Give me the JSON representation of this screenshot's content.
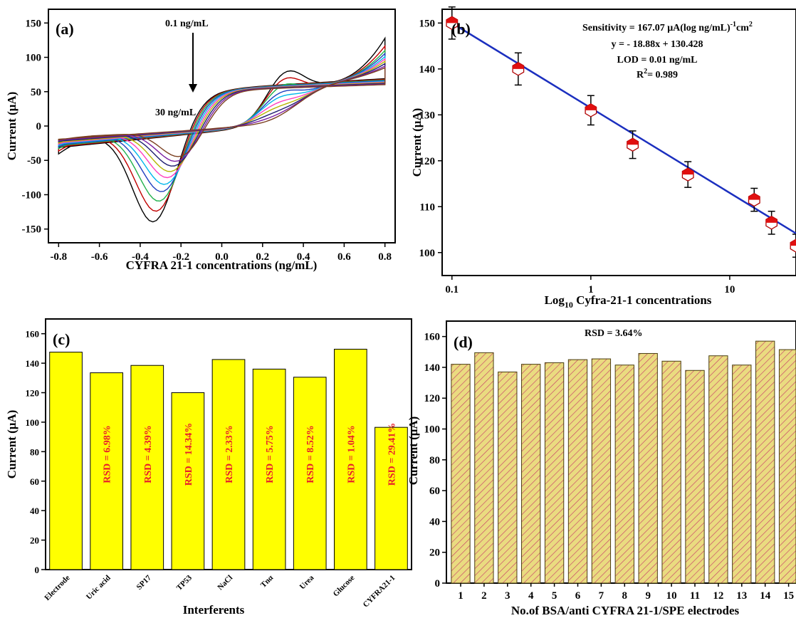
{
  "chart_data": [
    {
      "panel": "(a)",
      "type": "line",
      "xlabel": "CYFRA 21-1 concentrations (ng/mL)",
      "ylabel": "Current (μA)",
      "xlim": [
        -0.85,
        0.85
      ],
      "ylim": [
        -170,
        170
      ],
      "xticks": [
        "-0.8",
        "-0.6",
        "-0.4",
        "-0.2",
        "0.0",
        "0.2",
        "0.4",
        "0.6",
        "0.8"
      ],
      "xtick_values": [
        -0.8,
        -0.6,
        -0.4,
        -0.2,
        0.0,
        0.2,
        0.4,
        0.6,
        0.8
      ],
      "yticks": [
        "-150",
        "-100",
        "-50",
        "0",
        "50",
        "100",
        "150"
      ],
      "ytick_values": [
        -150,
        -100,
        -50,
        0,
        50,
        100,
        150
      ],
      "annotations": {
        "top": "0.1 ng/mL",
        "bottom": "30 ng/mL"
      },
      "series": [
        {
          "color": "#000000",
          "ipa": 158,
          "ipc": -162,
          "a_end": 111,
          "c_start": -103
        },
        {
          "color": "#c00000",
          "ipa": 149,
          "ipc": -149,
          "a_end": 100,
          "c_start": -95
        },
        {
          "color": "#22b14c",
          "ipa": 141,
          "ipc": -137,
          "a_end": 94,
          "c_start": -89
        },
        {
          "color": "#1f3fbf",
          "ipa": 132,
          "ipc": -126,
          "a_end": 90,
          "c_start": -85
        },
        {
          "color": "#00b7eb",
          "ipa": 126,
          "ipc": -118,
          "a_end": 86,
          "c_start": -81
        },
        {
          "color": "#ff3fbf",
          "ipa": 119,
          "ipc": -111,
          "a_end": 83,
          "c_start": -78
        },
        {
          "color": "#b5b500",
          "ipa": 113,
          "ipc": -105,
          "a_end": 80,
          "c_start": -75
        },
        {
          "color": "#202070",
          "ipa": 107,
          "ipc": -100,
          "a_end": 77,
          "c_start": -72
        },
        {
          "color": "#7a1fa2",
          "ipa": 102,
          "ipc": -96,
          "a_end": 74,
          "c_start": -70
        },
        {
          "color": "#7a3f1f",
          "ipa": 98,
          "ipc": -92,
          "a_end": 72,
          "c_start": -68
        }
      ]
    },
    {
      "panel": "(b)",
      "type": "scatter",
      "xscale": "log",
      "xlabel_main": "Log",
      "xlabel_sub": "10",
      "xlabel_rest": " Cyfra-21-1 concentrations",
      "ylabel": "Current (μA)",
      "xlim": [
        0.085,
        30
      ],
      "ylim": [
        95,
        153
      ],
      "xticks": [
        "0.1",
        "1",
        "10"
      ],
      "xtick_values": [
        0.1,
        1,
        10
      ],
      "yticks": [
        "100",
        "110",
        "120",
        "130",
        "140",
        "150"
      ],
      "ytick_values": [
        100,
        110,
        120,
        130,
        140,
        150
      ],
      "x": [
        0.1,
        0.3,
        1,
        2,
        5,
        15,
        20,
        30
      ],
      "y": [
        150,
        140,
        131,
        123.5,
        117,
        111.5,
        106.5,
        101.5
      ],
      "error": [
        3.5,
        3.5,
        3.2,
        3,
        2.8,
        2.5,
        2.5,
        2.5
      ],
      "fit": {
        "slope": -18.88,
        "intercept": 130.428,
        "color": "#1b2fbf"
      },
      "marker_color": "#e01010",
      "annotations": {
        "sensitivity": "Sensitivity = 167.07 μA(log ng/mL)",
        "sensitivity_sup1": "-1",
        "sensitivity_unit": "cm",
        "sensitivity_sup2": "2",
        "equation": "y = - 18.88x + 130.428",
        "lod": "LOD = 0.01 ng/mL",
        "r2_main": "R",
        "r2_sup": "2",
        "r2_rest": "= 0.989"
      }
    },
    {
      "panel": "(c)",
      "type": "bar",
      "xlabel": "Interferents",
      "ylabel": "Current (μA)",
      "ylim": [
        0,
        170
      ],
      "yticks": [
        "0",
        "20",
        "40",
        "60",
        "80",
        "100",
        "120",
        "140",
        "160"
      ],
      "ytick_values": [
        0,
        20,
        40,
        60,
        80,
        100,
        120,
        140,
        160
      ],
      "categories": [
        "Electrode",
        "Uric acid",
        "SP17",
        "TP53",
        "NaCl",
        "Tnα",
        "Urea",
        "Glucose",
        "CYFRA21-1"
      ],
      "values": [
        147.5,
        133.5,
        138.5,
        120,
        142.5,
        136,
        130.5,
        149.5,
        96.5
      ],
      "bar_labels": [
        "",
        "RSD = 6.98%",
        "RSD = 4.39%",
        "RSD = 14.34%",
        "RSD = 2.33%",
        "RSD = 5.75%",
        "RSD = 8.52%",
        "RSD = 1.04%",
        "RSD = 29.41%"
      ],
      "bar_color": "#ffff00"
    },
    {
      "panel": "(d)",
      "type": "bar",
      "xlabel": "No.of BSA/anti CYFRA 21-1/SPE electrodes",
      "ylabel": "Current (μA)",
      "ylim": [
        0,
        170
      ],
      "yticks": [
        "0",
        "20",
        "40",
        "60",
        "80",
        "100",
        "120",
        "140",
        "160"
      ],
      "ytick_values": [
        0,
        20,
        40,
        60,
        80,
        100,
        120,
        140,
        160
      ],
      "categories": [
        "1",
        "2",
        "3",
        "4",
        "5",
        "6",
        "7",
        "8",
        "9",
        "10",
        "11",
        "12",
        "13",
        "14",
        "15"
      ],
      "values": [
        142,
        149.5,
        137,
        142,
        143,
        145,
        145.5,
        141.5,
        149,
        144,
        138,
        147.5,
        141.5,
        157,
        151.5
      ],
      "annotation": "RSD = 3.64%",
      "bar_color": "#d9c86a"
    }
  ]
}
